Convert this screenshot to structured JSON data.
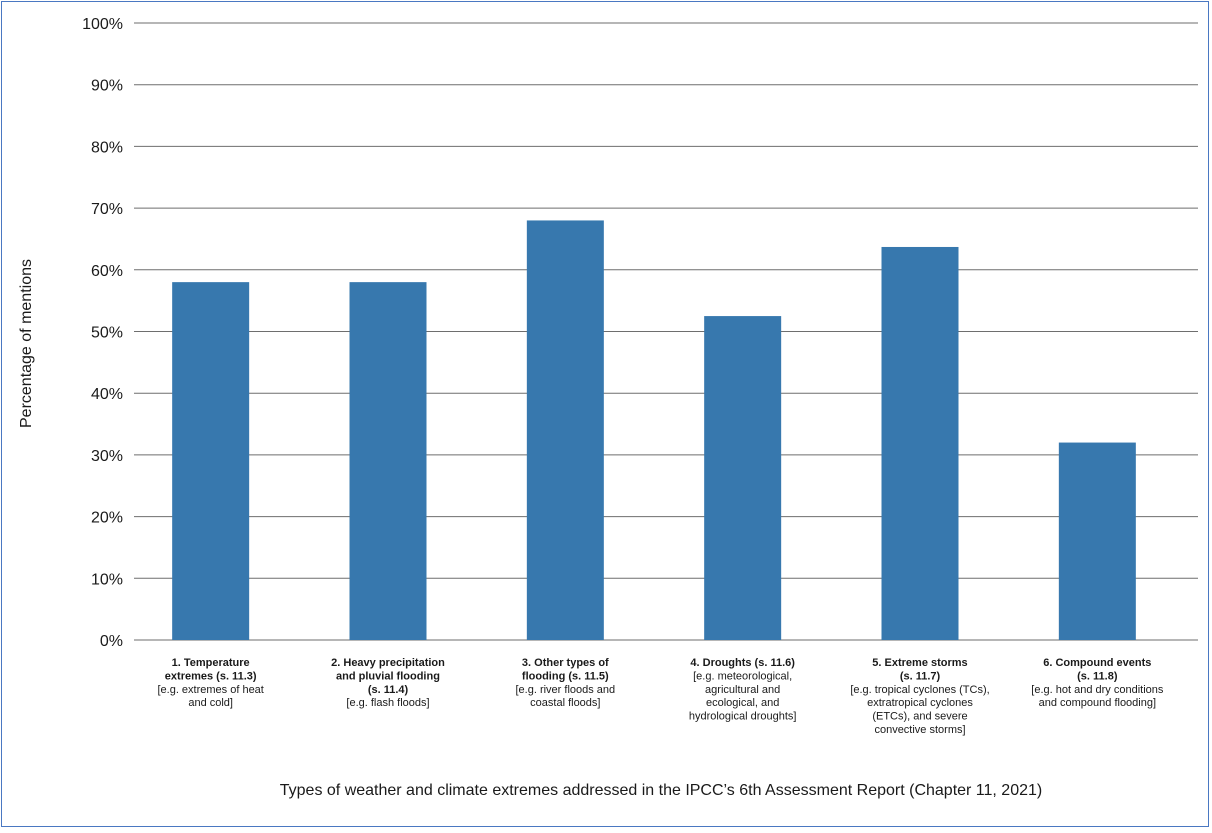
{
  "colors": {
    "bar": "#3778ae",
    "grid": "#6e6e6e",
    "border": "#4a78c2"
  },
  "chart_data": {
    "type": "bar",
    "title": "",
    "xlabel": "Types of weather and climate extremes addressed in the IPCC’s 6th Assessment Report (Chapter 11, 2021)",
    "ylabel": "Percentage of mentions",
    "ylim": [
      0,
      100
    ],
    "yticks": [
      "0%",
      "10%",
      "20%",
      "30%",
      "40%",
      "50%",
      "60%",
      "70%",
      "80%",
      "90%",
      "100%"
    ],
    "grid": true,
    "legend": "none",
    "categories": [
      {
        "title": [
          "1. Temperature",
          "extremes (s. 11.3)"
        ],
        "desc": [
          "[e.g. extremes of heat",
          "and cold]"
        ]
      },
      {
        "title": [
          "2. Heavy precipitation",
          "and pluvial flooding",
          "(s. 11.4)"
        ],
        "desc": [
          "[e.g. flash floods]"
        ]
      },
      {
        "title": [
          "3. Other types of",
          "flooding (s. 11.5)"
        ],
        "desc": [
          "[e.g. river floods and",
          "coastal floods]"
        ]
      },
      {
        "title": [
          "4. Droughts (s. 11.6)"
        ],
        "desc": [
          "[e.g. meteorological,",
          "agricultural and",
          "ecological, and",
          "hydrological droughts]"
        ]
      },
      {
        "title": [
          "5. Extreme storms",
          "(s. 11.7)"
        ],
        "desc": [
          "[e.g. tropical cyclones (TCs),",
          "extratropical cyclones",
          "(ETCs), and severe",
          "convective storms]"
        ]
      },
      {
        "title": [
          "6. Compound events",
          "(s. 11.8)"
        ],
        "desc": [
          "[e.g. hot and dry conditions",
          "and compound flooding]"
        ]
      }
    ],
    "values": [
      58,
      58,
      68,
      52.5,
      63.7,
      32
    ]
  }
}
